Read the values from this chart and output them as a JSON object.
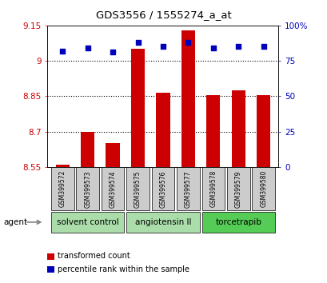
{
  "title": "GDS3556 / 1555274_a_at",
  "samples": [
    "GSM399572",
    "GSM399573",
    "GSM399574",
    "GSM399575",
    "GSM399576",
    "GSM399577",
    "GSM399578",
    "GSM399579",
    "GSM399580"
  ],
  "bar_values": [
    8.56,
    8.7,
    8.65,
    9.05,
    8.865,
    9.13,
    8.855,
    8.875,
    8.855
  ],
  "percentile_values": [
    82,
    84,
    81,
    88,
    85,
    88,
    84,
    85,
    85
  ],
  "bar_bottom": 8.55,
  "ylim_left": [
    8.55,
    9.15
  ],
  "ylim_right": [
    0,
    100
  ],
  "yticks_left": [
    8.55,
    8.7,
    8.85,
    9.0,
    9.15
  ],
  "yticks_right": [
    0,
    25,
    50,
    75,
    100
  ],
  "ytick_labels_left": [
    "8.55",
    "8.7",
    "8.85",
    "9",
    "9.15"
  ],
  "ytick_labels_right": [
    "0",
    "25",
    "50",
    "75",
    "100%"
  ],
  "bar_color": "#cc0000",
  "dot_color": "#0000bb",
  "group_info": [
    {
      "label": "solvent control",
      "start": 0,
      "end": 2,
      "color": "#aaddaa"
    },
    {
      "label": "angiotensin II",
      "start": 3,
      "end": 5,
      "color": "#aaddaa"
    },
    {
      "label": "torcetrapib",
      "start": 6,
      "end": 8,
      "color": "#55cc55"
    }
  ],
  "legend_bar_label": "transformed count",
  "legend_dot_label": "percentile rank within the sample",
  "agent_label": "agent",
  "tick_color_left": "#cc0000",
  "tick_color_right": "#0000bb",
  "sample_box_color": "#cccccc",
  "grid_lines": [
    9.0,
    8.85,
    8.7
  ]
}
